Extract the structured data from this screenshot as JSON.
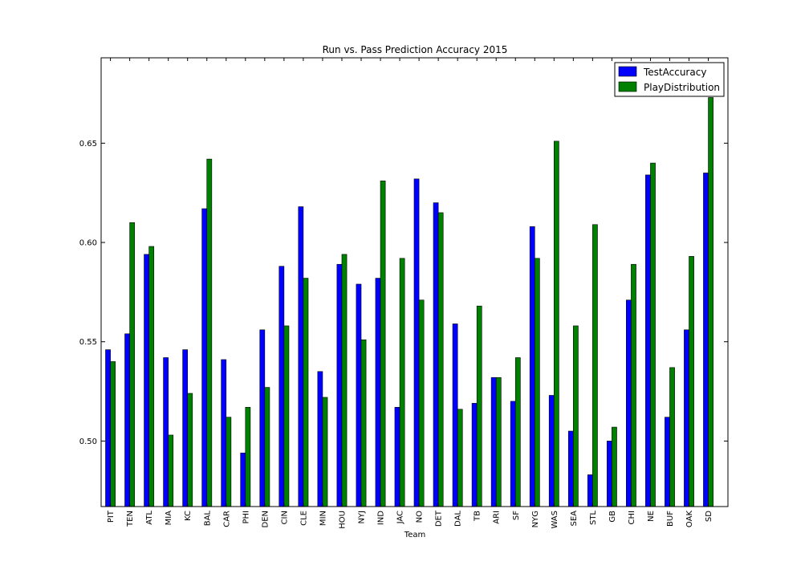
{
  "chart_data": {
    "type": "bar",
    "title": "Run vs. Pass Prediction Accuracy 2015",
    "xlabel": "Team",
    "ylabel": "",
    "ylim": [
      0.467,
      0.693
    ],
    "yticks": [
      0.5,
      0.55,
      0.6,
      0.65
    ],
    "ytick_labels": [
      "0.50",
      "0.55",
      "0.60",
      "0.65"
    ],
    "grid": false,
    "legend_position": "top-right",
    "categories": [
      "PIT",
      "TEN",
      "ATL",
      "MIA",
      "KC",
      "BAL",
      "CAR",
      "PHI",
      "DEN",
      "CIN",
      "CLE",
      "MIN",
      "HOU",
      "NYJ",
      "IND",
      "JAC",
      "NO",
      "DET",
      "DAL",
      "TB",
      "ARI",
      "SF",
      "NYG",
      "WAS",
      "SEA",
      "STL",
      "GB",
      "CHI",
      "NE",
      "BUF",
      "OAK",
      "SD"
    ],
    "series": [
      {
        "name": "TestAccuracy",
        "color": "#0000ff",
        "values": [
          0.546,
          0.554,
          0.594,
          0.542,
          0.546,
          0.617,
          0.541,
          0.494,
          0.556,
          0.588,
          0.618,
          0.535,
          0.589,
          0.579,
          0.582,
          0.517,
          0.632,
          0.62,
          0.559,
          0.519,
          0.532,
          0.52,
          0.608,
          0.523,
          0.505,
          0.483,
          0.5,
          0.571,
          0.634,
          0.512,
          0.556,
          0.635
        ]
      },
      {
        "name": "PlayDistribution",
        "color": "#008000",
        "values": [
          0.54,
          0.61,
          0.598,
          0.503,
          0.524,
          0.642,
          0.512,
          0.517,
          0.527,
          0.558,
          0.582,
          0.522,
          0.594,
          0.551,
          0.631,
          0.592,
          0.571,
          0.615,
          0.516,
          0.568,
          0.532,
          0.542,
          0.592,
          0.651,
          0.558,
          0.609,
          0.507,
          0.589,
          0.64,
          0.537,
          0.593,
          0.673
        ]
      }
    ]
  }
}
